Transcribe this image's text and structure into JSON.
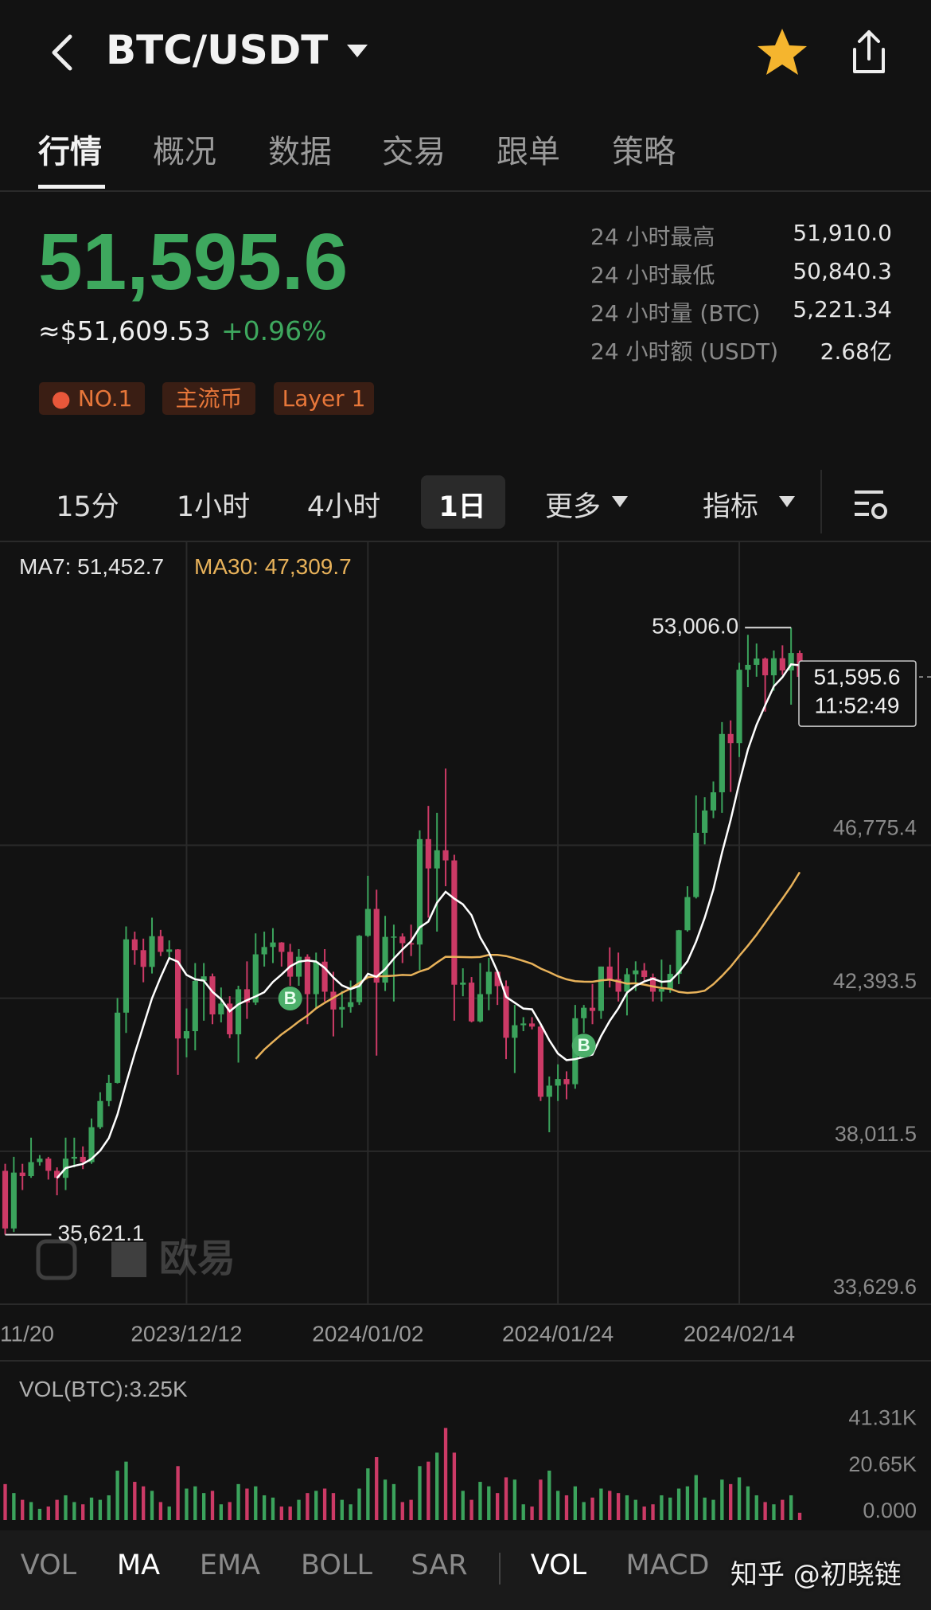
{
  "header": {
    "title": "BTC/USDT"
  },
  "tabs": [
    "行情",
    "概况",
    "数据",
    "交易",
    "跟单",
    "策略"
  ],
  "ticker": {
    "price": "51,595.6",
    "usd": "≈$51,609.53",
    "change": "+0.96%"
  },
  "stats": [
    [
      "24 小时最高",
      "51,910.0"
    ],
    [
      "24 小时最低",
      "50,840.3"
    ],
    [
      "24 小时量 (BTC)",
      "5,221.34"
    ],
    [
      "24 小时额 (USDT)",
      "2.68亿"
    ]
  ],
  "tags": [
    "NO.1",
    "主流币",
    "Layer 1"
  ],
  "timeframes": [
    "15分",
    "1小时",
    "4小时",
    "1日",
    "更多",
    "指标"
  ],
  "chart_data": {
    "type": "candlestick",
    "ma_legend": [
      "MA7: 51,452.7",
      "MA30: 47,309.7"
    ],
    "colors": {
      "up": "#3ba35c",
      "down": "#cc3a66",
      "ma7": "#ffffff",
      "ma30": "#e8b25a"
    },
    "candles": [
      [
        37450,
        37650,
        35621.1,
        35800
      ],
      [
        35800,
        37850,
        35700,
        37400
      ],
      [
        37400,
        37650,
        36900,
        37300
      ],
      [
        37300,
        38400,
        37250,
        37700
      ],
      [
        37700,
        37900,
        37600,
        37800
      ],
      [
        37800,
        37850,
        37200,
        37450
      ],
      [
        37450,
        37550,
        36750,
        37250
      ],
      [
        37250,
        38400,
        36900,
        37800
      ],
      [
        37800,
        38400,
        37550,
        37850
      ],
      [
        37850,
        38150,
        37500,
        37700
      ],
      [
        37700,
        38950,
        37650,
        38700
      ],
      [
        38700,
        39700,
        38650,
        39450
      ],
      [
        39450,
        40200,
        39300,
        39970
      ],
      [
        39970,
        42400,
        39950,
        41980
      ],
      [
        41980,
        44450,
        41400,
        44080
      ],
      [
        44080,
        44300,
        43350,
        43770
      ],
      [
        43770,
        44100,
        42850,
        43290
      ],
      [
        43290,
        44700,
        43100,
        44170
      ],
      [
        44170,
        44350,
        43600,
        43720
      ],
      [
        43720,
        44050,
        43550,
        43790
      ],
      [
        43790,
        43800,
        40200,
        41240
      ],
      [
        41240,
        42100,
        40700,
        41450
      ],
      [
        41450,
        43400,
        40900,
        42890
      ],
      [
        42890,
        43400,
        41750,
        43020
      ],
      [
        43020,
        43100,
        41650,
        41930
      ],
      [
        41930,
        42700,
        41700,
        42240
      ],
      [
        42240,
        42450,
        41250,
        41360
      ],
      [
        41360,
        42750,
        40550,
        42650
      ],
      [
        42650,
        43450,
        41800,
        42270
      ],
      [
        42270,
        44250,
        42200,
        43650
      ],
      [
        43650,
        44300,
        43300,
        43860
      ],
      [
        43860,
        44400,
        43400,
        43990
      ],
      [
        43990,
        44000,
        43300,
        43720
      ],
      [
        43720,
        43950,
        42750,
        43010
      ],
      [
        43010,
        43800,
        42750,
        43580
      ],
      [
        43580,
        43650,
        41650,
        42510
      ],
      [
        42510,
        43700,
        42100,
        43440
      ],
      [
        43440,
        43800,
        42300,
        42580
      ],
      [
        42580,
        43150,
        41300,
        42070
      ],
      [
        42070,
        42600,
        41550,
        42140
      ],
      [
        42140,
        42900,
        41980,
        42280
      ],
      [
        42280,
        44200,
        42200,
        44180
      ],
      [
        44180,
        45900,
        44150,
        44950
      ],
      [
        44950,
        45500,
        40750,
        42840
      ],
      [
        42840,
        44750,
        42600,
        44150
      ],
      [
        44150,
        44500,
        42300,
        44160
      ],
      [
        44160,
        44250,
        43400,
        43970
      ],
      [
        43970,
        44500,
        43600,
        43930
      ],
      [
        43930,
        47200,
        43200,
        46950
      ],
      [
        46950,
        47900,
        44700,
        46110
      ],
      [
        46110,
        47700,
        44300,
        46630
      ],
      [
        46630,
        48969,
        45600,
        46340
      ],
      [
        46340,
        46500,
        41750,
        42780
      ],
      [
        42780,
        43250,
        42450,
        42840
      ],
      [
        42840,
        43000,
        41700,
        41730
      ],
      [
        41730,
        43400,
        41700,
        42510
      ],
      [
        42510,
        43550,
        42050,
        43150
      ],
      [
        43150,
        43200,
        42200,
        42740
      ],
      [
        42740,
        42900,
        40650,
        41260
      ],
      [
        41260,
        42200,
        40250,
        41620
      ],
      [
        41620,
        41850,
        41450,
        41670
      ],
      [
        41670,
        41850,
        41500,
        41580
      ],
      [
        41580,
        41650,
        39450,
        39570
      ],
      [
        39570,
        40150,
        38555,
        39890
      ],
      [
        39890,
        40500,
        39450,
        40080
      ],
      [
        40080,
        40300,
        39500,
        39930
      ],
      [
        39930,
        42200,
        39800,
        41820
      ],
      [
        41820,
        42200,
        41400,
        42120
      ],
      [
        42120,
        42800,
        41650,
        42030
      ],
      [
        42030,
        43300,
        41800,
        43300
      ],
      [
        43300,
        43850,
        42700,
        42940
      ],
      [
        42940,
        43700,
        42300,
        42580
      ],
      [
        42580,
        43250,
        41900,
        43080
      ],
      [
        43080,
        43450,
        42600,
        43190
      ],
      [
        43190,
        43400,
        42900,
        43000
      ],
      [
        43000,
        43100,
        42300,
        42580
      ],
      [
        42580,
        43500,
        42300,
        42660
      ],
      [
        42660,
        43350,
        42550,
        43090
      ],
      [
        43090,
        44350,
        42800,
        44340
      ],
      [
        44340,
        45600,
        44300,
        45290
      ],
      [
        45290,
        48200,
        45250,
        47130
      ],
      [
        47130,
        48150,
        46800,
        47770
      ],
      [
        47770,
        48600,
        47550,
        48290
      ],
      [
        48290,
        50300,
        47700,
        49960
      ],
      [
        49960,
        50350,
        48300,
        49700
      ],
      [
        49700,
        52000,
        49300,
        51800
      ],
      [
        51800,
        52800,
        51300,
        51940
      ],
      [
        51940,
        52550,
        51600,
        52120
      ],
      [
        52120,
        52150,
        50600,
        51640
      ],
      [
        51640,
        52350,
        51200,
        52130
      ],
      [
        52130,
        52500,
        51650,
        51780
      ],
      [
        51780,
        53006.0,
        50800,
        52280
      ],
      [
        52280,
        52350,
        50840.3,
        51595.6
      ]
    ],
    "ylim": [
      33629.6,
      55451
    ],
    "yticks": [
      {
        "value": 33629.6,
        "label": "33,629.6"
      },
      {
        "value": 38011.5,
        "label": "38,011.5"
      },
      {
        "value": 42393.5,
        "label": "42,393.5"
      },
      {
        "value": 46775.4,
        "label": "46,775.4"
      }
    ],
    "xlim": [
      -0.6,
      107.2
    ],
    "xticks": [
      {
        "value": -1,
        "label": "11/20"
      },
      {
        "value": 21,
        "label": "2023/12/12"
      },
      {
        "value": 42,
        "label": "2024/01/02"
      },
      {
        "value": 64,
        "label": "2024/01/24"
      },
      {
        "value": 85,
        "label": "2024/02/14"
      }
    ],
    "high": {
      "value": 53006.0,
      "label": "53,006.0"
    },
    "low": {
      "value": 35621.1,
      "label": "35,621.1"
    },
    "last": {
      "value": 51595.6,
      "label": "51,595.6",
      "time": "11:52:49"
    },
    "buy_markers": [
      "B",
      "B"
    ],
    "watermark": "欧易",
    "volume": {
      "title": "VOL(BTC):3.25K",
      "values": [
        16000,
        12000,
        9000,
        8000,
        5000,
        6000,
        9000,
        11000,
        8000,
        7000,
        10000,
        9000,
        11000,
        22000,
        26000,
        17000,
        15000,
        13000,
        8000,
        6000,
        24000,
        14000,
        15000,
        12000,
        13000,
        7000,
        8000,
        16000,
        14000,
        15000,
        11000,
        10000,
        6000,
        6000,
        9000,
        12000,
        13000,
        14000,
        12000,
        9000,
        7000,
        14000,
        23000,
        28000,
        18000,
        16000,
        8000,
        9000,
        24000,
        26000,
        30000,
        41000,
        30000,
        13000,
        9000,
        17000,
        15000,
        12000,
        19000,
        18000,
        7000,
        6000,
        18000,
        22000,
        13000,
        11000,
        15000,
        8000,
        10000,
        14000,
        13000,
        12000,
        11000,
        9000,
        6000,
        7000,
        11000,
        10000,
        14000,
        15000,
        20000,
        10000,
        9000,
        18000,
        16000,
        19000,
        15000,
        11000,
        8000,
        7000,
        9000,
        11000,
        3250
      ],
      "ylim": [
        0,
        67000
      ],
      "yticks": [
        {
          "value": 0,
          "label": "0.000"
        },
        {
          "value": 20650,
          "label": "20.65K"
        },
        {
          "value": 41310,
          "label": "41.31K"
        }
      ]
    }
  },
  "indicators": [
    "VOL",
    "MA",
    "EMA",
    "BOLL",
    "SAR",
    "VOL",
    "MACD"
  ],
  "watermark": "知乎 @初晓链"
}
